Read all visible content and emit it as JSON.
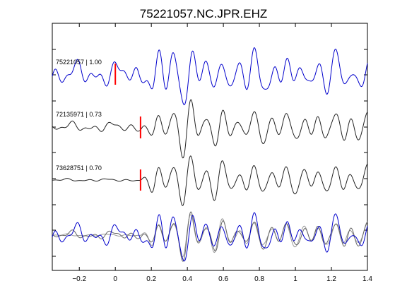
{
  "chart_data": {
    "type": "line",
    "title": "75221057.NC.JPR.EHZ",
    "xlabel": "",
    "ylabel": "",
    "xlim": [
      -0.35,
      1.4
    ],
    "xticks": [
      -0.2,
      0,
      0.2,
      0.4,
      0.6,
      0.8,
      1,
      1.2,
      1.4
    ],
    "xtick_labels": [
      "−0.2",
      "0",
      "0.2",
      "0.4",
      "0.6",
      "0.8",
      "1",
      "1.2",
      "1.4"
    ],
    "grid": false,
    "legend": "none",
    "traces": [
      {
        "label": "75221057 | 1.00",
        "pick_time": 0.0,
        "color": "#0000cc",
        "amp": 1.0,
        "onset": -0.35,
        "pre_noise": 0.35
      },
      {
        "label": "72135971 | 0.73",
        "pick_time": 0.14,
        "color": "#222222",
        "amp": 1.0,
        "onset": 0.0,
        "pre_noise": 0.08
      },
      {
        "label": "73628751 | 0.70",
        "pick_time": 0.14,
        "color": "#222222",
        "amp": 1.0,
        "onset": 0.14,
        "pre_noise": 0.015
      }
    ],
    "overlay": {
      "colors": [
        "#0000cc",
        "#666666",
        "#999999"
      ]
    },
    "pick_color": "#ff0000"
  }
}
